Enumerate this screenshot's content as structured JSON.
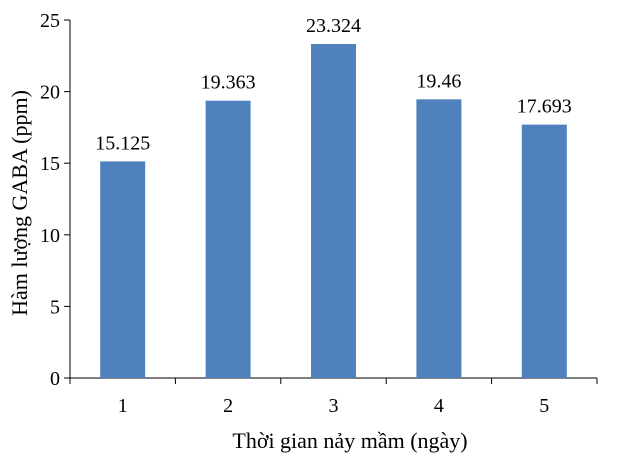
{
  "chart_data": {
    "type": "bar",
    "categories": [
      "1",
      "2",
      "3",
      "4",
      "5"
    ],
    "values": [
      15.125,
      19.363,
      23.324,
      19.46,
      17.693
    ],
    "data_labels": [
      "15.125",
      "19.363",
      "23.324",
      "19.46",
      "17.693"
    ],
    "xlabel": "Thời gian nảy mầm (ngày)",
    "ylabel": "Hàm lượng GABA (ppm)",
    "ylim": [
      0,
      25
    ],
    "yticks": [
      "0",
      "5",
      "10",
      "15",
      "20",
      "25"
    ],
    "bar_color": "#4F81BD",
    "grid": false,
    "legend": "none"
  }
}
